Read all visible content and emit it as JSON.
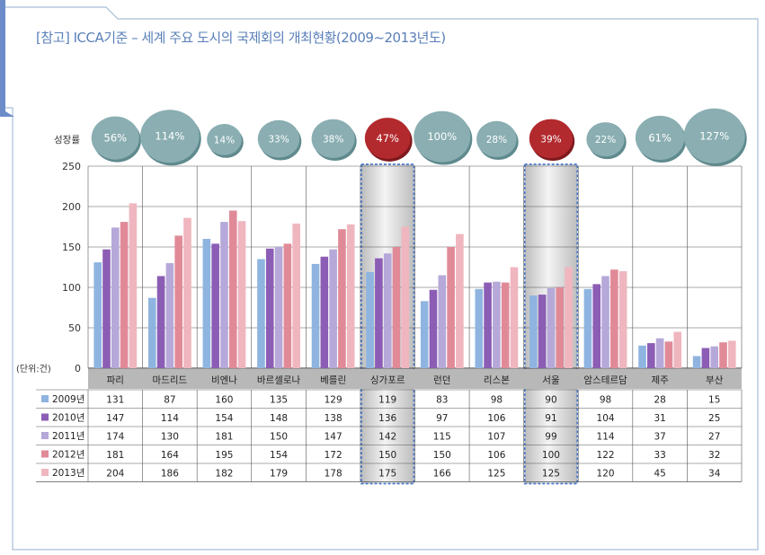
{
  "title": "[참고] ICCA기준 – 세계 주요 도시의 국제회의 개최현황(2009~2013년도)",
  "chart_data": {
    "type": "bar",
    "categories": [
      "파리",
      "마드리드",
      "비엔나",
      "바르셀로나",
      "베를린",
      "싱가포르",
      "런던",
      "리스본",
      "서울",
      "암스테르담",
      "제주",
      "부산"
    ],
    "series": [
      {
        "name": "2009년",
        "color": "#8fb4e0",
        "values": [
          131,
          87,
          160,
          135,
          129,
          119,
          83,
          98,
          90,
          98,
          28,
          15
        ]
      },
      {
        "name": "2010년",
        "color": "#8b5db5",
        "values": [
          147,
          114,
          154,
          148,
          138,
          136,
          97,
          106,
          91,
          104,
          31,
          25
        ]
      },
      {
        "name": "2011년",
        "color": "#b6a8d8",
        "values": [
          174,
          130,
          181,
          150,
          147,
          142,
          115,
          107,
          99,
          114,
          37,
          27
        ]
      },
      {
        "name": "2012년",
        "color": "#e08a98",
        "values": [
          181,
          164,
          195,
          154,
          172,
          150,
          150,
          106,
          100,
          122,
          33,
          32
        ]
      },
      {
        "name": "2013년",
        "color": "#efb6bf",
        "values": [
          204,
          186,
          182,
          179,
          178,
          175,
          166,
          125,
          125,
          120,
          45,
          34
        ]
      }
    ],
    "growth_label": "성장률",
    "growth_rates": [
      "56%",
      "114%",
      "14%",
      "33%",
      "38%",
      "47%",
      "100%",
      "28%",
      "39%",
      "22%",
      "61%",
      "127%"
    ],
    "growth_values": [
      56,
      114,
      14,
      33,
      38,
      47,
      100,
      28,
      39,
      22,
      61,
      127
    ],
    "highlighted": [
      "싱가포르",
      "서울"
    ],
    "ylim": [
      0,
      250
    ],
    "yticks": [
      "250",
      "200",
      "150",
      "100",
      "50",
      "0"
    ],
    "unit_label": "(단위:건)",
    "legend_placement": "table-left",
    "colors": {
      "bubble": "#8aaeb2",
      "bubble_highlight": "#b22a2e",
      "title": "#5a7fb8",
      "header_band": "#b8b8b8"
    }
  }
}
